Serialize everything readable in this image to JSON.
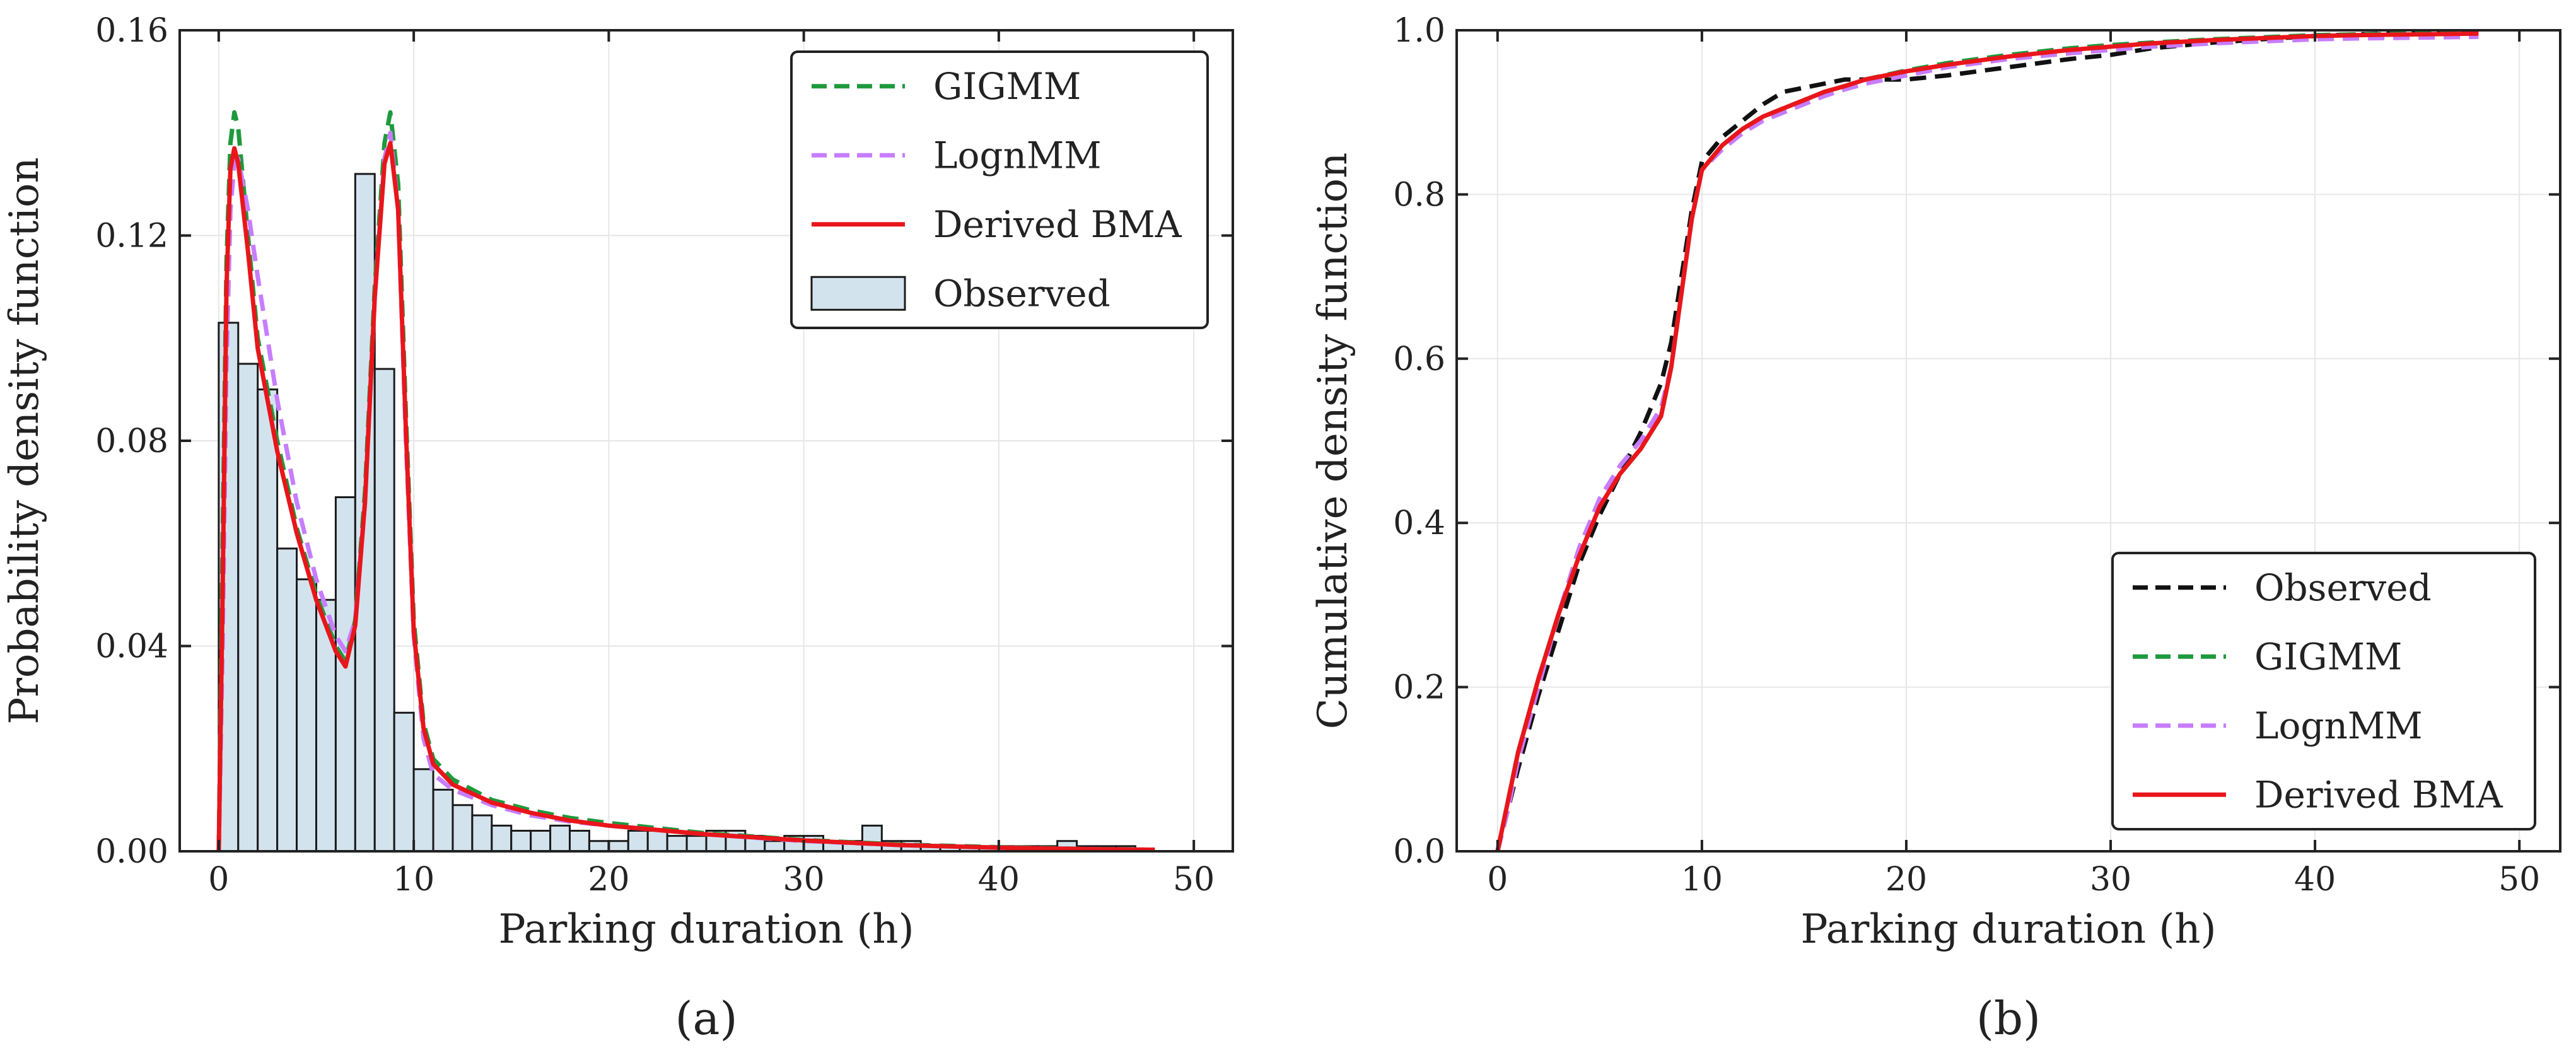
{
  "chart_data": [
    {
      "type": "histogram+line",
      "panel_label": "(a)",
      "xlabel": "Parking duration (h)",
      "ylabel": "Probability density function",
      "xlim": [
        -2,
        52
      ],
      "ylim": [
        0,
        0.16
      ],
      "xticks": [
        0,
        10,
        20,
        30,
        40,
        50
      ],
      "xtick_labels": [
        "0",
        "10",
        "20",
        "30",
        "40",
        "50"
      ],
      "yticks": [
        0,
        0.04,
        0.08,
        0.12,
        0.16
      ],
      "ytick_labels": [
        "0.00",
        "0.04",
        "0.08",
        "0.12",
        "0.16"
      ],
      "grid": true,
      "legend_position": "top-right",
      "legend": [
        "GIGMM",
        "LognMM",
        "Derived BMA",
        "Observed"
      ],
      "histogram": {
        "name": "Observed",
        "bin_width": 1,
        "bin_start": 0,
        "color": "#d3e3ee",
        "values": [
          0.103,
          0.095,
          0.09,
          0.059,
          0.053,
          0.049,
          0.069,
          0.132,
          0.094,
          0.027,
          0.016,
          0.012,
          0.009,
          0.007,
          0.005,
          0.004,
          0.004,
          0.005,
          0.004,
          0.002,
          0.002,
          0.004,
          0.004,
          0.003,
          0.003,
          0.004,
          0.004,
          0.003,
          0.002,
          0.003,
          0.003,
          0.002,
          0.002,
          0.005,
          0.002,
          0.002,
          0.001,
          0.001,
          0.001,
          0.001,
          0.001,
          0.001,
          0.001,
          0.002,
          0.001,
          0.001,
          0.001,
          0.0
        ]
      },
      "series": [
        {
          "name": "GIGMM",
          "color": "#1e9a3c",
          "dash": "dashed",
          "x": [
            0,
            0.2,
            0.4,
            0.6,
            0.8,
            1,
            1.5,
            2,
            3,
            4,
            5,
            6,
            6.5,
            7,
            7.5,
            8,
            8.5,
            8.8,
            9.2,
            9.6,
            10,
            10.5,
            11,
            12,
            14,
            16,
            18,
            20,
            25,
            30,
            35,
            40,
            45,
            48
          ],
          "y": [
            0,
            0.06,
            0.115,
            0.138,
            0.144,
            0.141,
            0.12,
            0.1,
            0.08,
            0.063,
            0.05,
            0.04,
            0.037,
            0.045,
            0.07,
            0.11,
            0.138,
            0.144,
            0.13,
            0.085,
            0.045,
            0.025,
            0.018,
            0.014,
            0.01,
            0.008,
            0.0065,
            0.0055,
            0.0035,
            0.0022,
            0.0013,
            0.0008,
            0.0004,
            0.0003
          ]
        },
        {
          "name": "LognMM",
          "color": "#c77dff",
          "dash": "dashed",
          "x": [
            0,
            0.2,
            0.4,
            0.6,
            0.8,
            1,
            1.5,
            2,
            3,
            4,
            5,
            6,
            6.5,
            7,
            7.5,
            8,
            8.5,
            8.8,
            9.2,
            9.6,
            10,
            10.5,
            11,
            12,
            14,
            16,
            18,
            20,
            25,
            30,
            35,
            40,
            45,
            48
          ],
          "y": [
            0,
            0.04,
            0.095,
            0.125,
            0.134,
            0.135,
            0.125,
            0.112,
            0.088,
            0.068,
            0.053,
            0.042,
            0.039,
            0.045,
            0.068,
            0.108,
            0.135,
            0.14,
            0.125,
            0.08,
            0.042,
            0.022,
            0.015,
            0.012,
            0.009,
            0.007,
            0.0058,
            0.005,
            0.0033,
            0.002,
            0.0012,
            0.0007,
            0.0004,
            0.0003
          ]
        },
        {
          "name": "Derived BMA",
          "color": "#e8161b",
          "dash": "solid",
          "x": [
            0,
            0.2,
            0.4,
            0.6,
            0.8,
            1,
            1.5,
            2,
            3,
            4,
            5,
            6,
            6.5,
            7,
            7.5,
            8,
            8.5,
            8.8,
            9.2,
            9.6,
            10,
            10.5,
            11,
            12,
            14,
            16,
            18,
            20,
            25,
            30,
            35,
            40,
            45,
            48
          ],
          "y": [
            0,
            0.05,
            0.11,
            0.133,
            0.137,
            0.134,
            0.117,
            0.098,
            0.078,
            0.062,
            0.049,
            0.039,
            0.036,
            0.044,
            0.068,
            0.108,
            0.134,
            0.138,
            0.125,
            0.082,
            0.043,
            0.024,
            0.017,
            0.013,
            0.0095,
            0.0075,
            0.006,
            0.005,
            0.0033,
            0.0021,
            0.0012,
            0.0007,
            0.0004,
            0.0003
          ]
        }
      ]
    },
    {
      "type": "line",
      "panel_label": "(b)",
      "xlabel": "Parking duration (h)",
      "ylabel": "Cumulative density function",
      "xlim": [
        -2,
        52
      ],
      "ylim": [
        0,
        1.0
      ],
      "xticks": [
        0,
        10,
        20,
        30,
        40,
        50
      ],
      "xtick_labels": [
        "0",
        "10",
        "20",
        "30",
        "40",
        "50"
      ],
      "yticks": [
        0,
        0.2,
        0.4,
        0.6,
        0.8,
        1.0
      ],
      "ytick_labels": [
        "0.0",
        "0.2",
        "0.4",
        "0.6",
        "0.8",
        "1.0"
      ],
      "grid": true,
      "legend_position": "bottom-right",
      "legend": [
        "Observed",
        "GIGMM",
        "LognMM",
        "Derived BMA"
      ],
      "series": [
        {
          "name": "Observed",
          "color": "#111111",
          "dash": "dashed",
          "x": [
            0,
            0.5,
            1,
            2,
            3,
            4,
            5,
            6,
            7,
            8,
            8.5,
            9,
            9.5,
            10,
            11,
            12,
            13,
            14,
            15,
            16,
            17,
            18,
            20,
            22,
            25,
            28,
            30,
            32,
            35,
            38,
            40,
            42,
            45,
            48
          ],
          "y": [
            0,
            0.05,
            0.1,
            0.19,
            0.27,
            0.35,
            0.41,
            0.46,
            0.51,
            0.57,
            0.62,
            0.7,
            0.78,
            0.84,
            0.87,
            0.89,
            0.91,
            0.925,
            0.93,
            0.935,
            0.94,
            0.94,
            0.94,
            0.945,
            0.955,
            0.965,
            0.97,
            0.978,
            0.985,
            0.99,
            0.993,
            0.995,
            0.997,
            0.998
          ]
        },
        {
          "name": "GIGMM",
          "color": "#1e9a3c",
          "dash": "dashed",
          "x": [
            0,
            0.5,
            1,
            2,
            3,
            4,
            5,
            6,
            7,
            8,
            8.5,
            9,
            9.5,
            10,
            11,
            12,
            13,
            14,
            15,
            16,
            17,
            18,
            20,
            22,
            25,
            28,
            30,
            32,
            35,
            38,
            40,
            42,
            45,
            48
          ],
          "y": [
            0,
            0.06,
            0.12,
            0.21,
            0.29,
            0.36,
            0.42,
            0.46,
            0.49,
            0.53,
            0.59,
            0.68,
            0.77,
            0.83,
            0.86,
            0.88,
            0.895,
            0.905,
            0.915,
            0.925,
            0.932,
            0.94,
            0.951,
            0.96,
            0.97,
            0.978,
            0.982,
            0.985,
            0.989,
            0.992,
            0.994,
            0.995,
            0.996,
            0.997
          ]
        },
        {
          "name": "LognMM",
          "color": "#c77dff",
          "dash": "dashed",
          "x": [
            0,
            0.5,
            1,
            2,
            3,
            4,
            5,
            6,
            7,
            8,
            8.5,
            9,
            9.5,
            10,
            11,
            12,
            13,
            14,
            15,
            16,
            17,
            18,
            20,
            22,
            25,
            28,
            30,
            32,
            35,
            38,
            40,
            42,
            45,
            48
          ],
          "y": [
            0,
            0.05,
            0.11,
            0.2,
            0.29,
            0.37,
            0.43,
            0.47,
            0.5,
            0.54,
            0.59,
            0.68,
            0.77,
            0.83,
            0.855,
            0.875,
            0.89,
            0.9,
            0.91,
            0.92,
            0.928,
            0.935,
            0.945,
            0.955,
            0.965,
            0.972,
            0.976,
            0.98,
            0.984,
            0.987,
            0.989,
            0.99,
            0.991,
            0.992
          ]
        },
        {
          "name": "Derived BMA",
          "color": "#e8161b",
          "dash": "solid",
          "x": [
            0,
            0.5,
            1,
            2,
            3,
            4,
            5,
            6,
            7,
            8,
            8.5,
            9,
            9.5,
            10,
            11,
            12,
            13,
            14,
            15,
            16,
            17,
            18,
            20,
            22,
            25,
            28,
            30,
            32,
            35,
            38,
            40,
            42,
            45,
            48
          ],
          "y": [
            0,
            0.06,
            0.12,
            0.21,
            0.29,
            0.36,
            0.42,
            0.46,
            0.49,
            0.53,
            0.59,
            0.68,
            0.77,
            0.83,
            0.86,
            0.88,
            0.895,
            0.905,
            0.915,
            0.925,
            0.932,
            0.94,
            0.95,
            0.958,
            0.968,
            0.976,
            0.98,
            0.984,
            0.988,
            0.991,
            0.993,
            0.994,
            0.995,
            0.996
          ]
        }
      ]
    }
  ]
}
